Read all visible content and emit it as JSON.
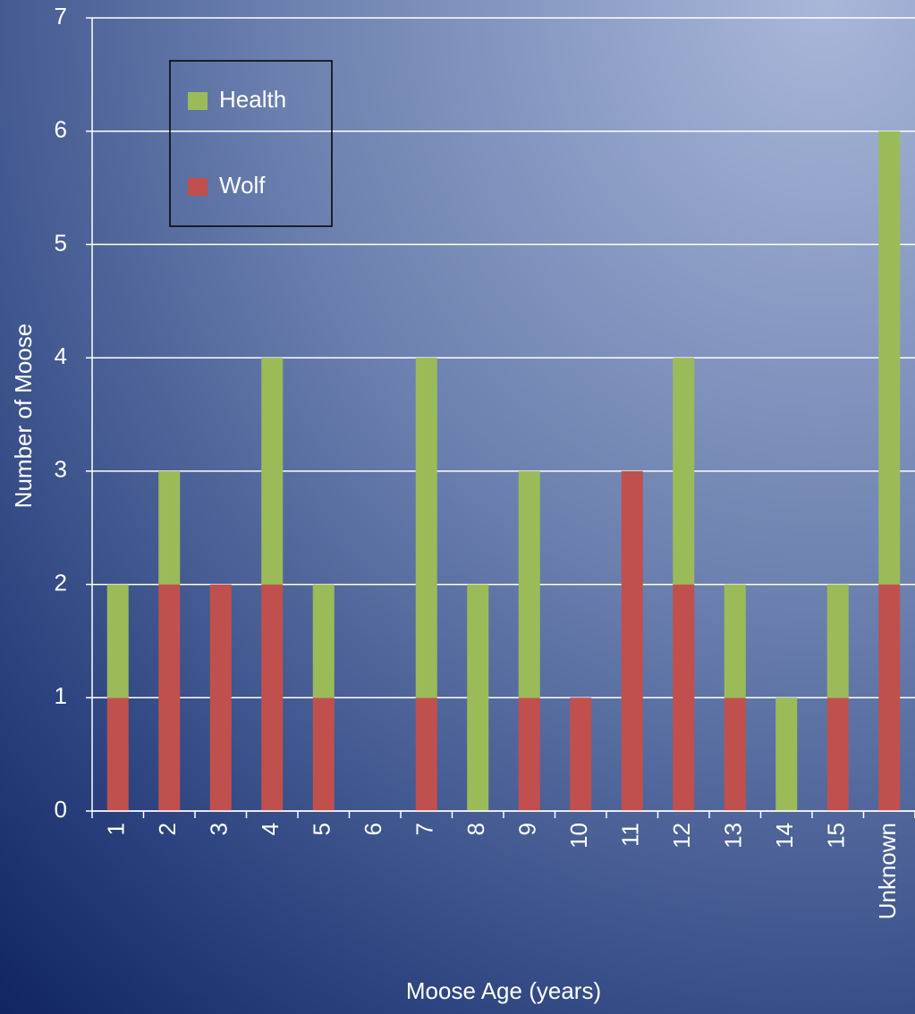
{
  "chart_data": {
    "type": "stacked-bar",
    "x_label": "Moose Age (years)",
    "y_label": "Number of Moose",
    "categories": [
      "1",
      "2",
      "3",
      "4",
      "5",
      "6",
      "7",
      "8",
      "9",
      "10",
      "11",
      "12",
      "13",
      "14",
      "15",
      "Unknown"
    ],
    "series": [
      {
        "name": "Health",
        "color": "#9bbb59",
        "values": [
          1,
          1,
          0,
          2,
          1,
          0,
          3,
          2,
          2,
          0,
          0,
          2,
          1,
          1,
          1,
          4
        ]
      },
      {
        "name": "Wolf",
        "color": "#c0504d",
        "values": [
          1,
          2,
          2,
          2,
          1,
          0,
          1,
          0,
          1,
          1,
          3,
          2,
          1,
          0,
          1,
          2
        ]
      }
    ],
    "ylim": [
      0,
      7
    ],
    "yticks": [
      0,
      1,
      2,
      3,
      4,
      5,
      6,
      7
    ],
    "grid": true,
    "legend": "upper left"
  }
}
